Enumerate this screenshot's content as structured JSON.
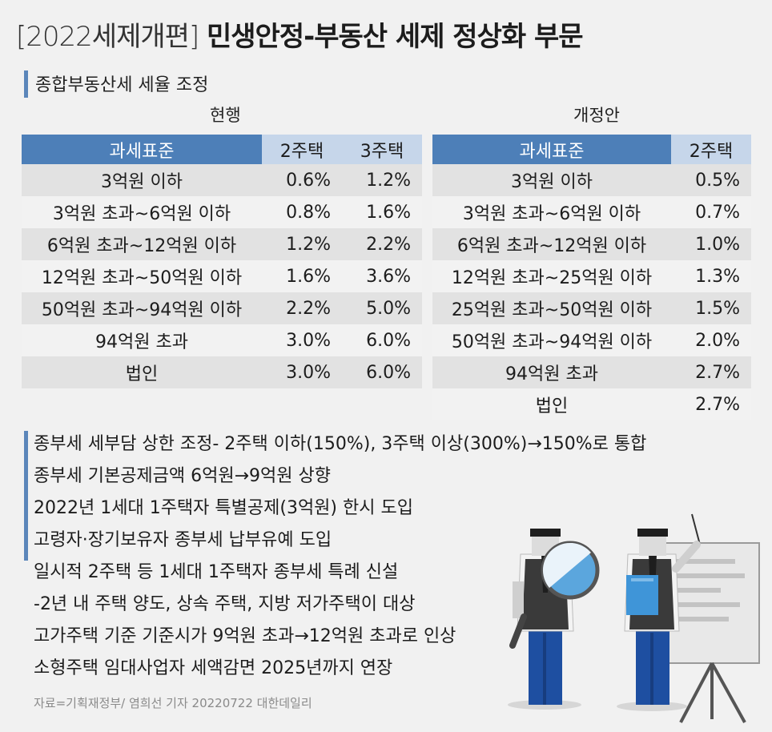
{
  "header": {
    "tag": "[2022세제개편]",
    "title": "민생안정-부동산 세제 정상화 부문"
  },
  "section": {
    "title": "종합부동산세 세율 조정"
  },
  "current_table": {
    "caption": "현행",
    "headers": [
      "과세표준",
      "2주택",
      "3주택"
    ],
    "rows": [
      {
        "bracket": "3억원 이하",
        "two": "0.6%",
        "three": "1.2%"
      },
      {
        "bracket": "3억원 초과~6억원 이하",
        "two": "0.8%",
        "three": "1.6%"
      },
      {
        "bracket": "6억원 초과~12억원 이하",
        "two": "1.2%",
        "three": "2.2%"
      },
      {
        "bracket": "12억원 초과~50억원 이하",
        "two": "1.6%",
        "three": "3.6%"
      },
      {
        "bracket": "50억원 초과~94억원 이하",
        "two": "2.2%",
        "three": "5.0%"
      },
      {
        "bracket": "94억원 초과",
        "two": "3.0%",
        "three": "6.0%"
      },
      {
        "bracket": "법인",
        "two": "3.0%",
        "three": "6.0%"
      }
    ]
  },
  "proposal_table": {
    "caption": "개정안",
    "headers": [
      "과세표준",
      "2주택"
    ],
    "rows": [
      {
        "bracket": "3억원 이하",
        "two": "0.5%"
      },
      {
        "bracket": "3억원 초과~6억원 이하",
        "two": "0.7%"
      },
      {
        "bracket": "6억원 초과~12억원 이하",
        "two": "1.0%"
      },
      {
        "bracket": "12억원 초과~25억원 이하",
        "two": "1.3%"
      },
      {
        "bracket": "25억원 초과~50억원 이하",
        "two": "1.5%"
      },
      {
        "bracket": "50억원 초과~94억원 이하",
        "two": "2.0%"
      },
      {
        "bracket": "94억원 초과",
        "two": "2.7%"
      },
      {
        "bracket": "법인",
        "two": "2.7%"
      }
    ]
  },
  "notes": [
    "종부세 세부담 상한 조정- 2주택 이하(150%), 3주택 이상(300%)→150%로 통합",
    "종부세 기본공제금액 6억원→9억원 상향",
    "2022년 1세대 1주택자 특별공제(3억원) 한시 도입",
    "고령자·장기보유자 종부세 납부유예 도입",
    "일시적 2주택 등 1세대 1주택자 종부세 특례 신설",
    "-2년 내 주택 양도, 상속 주택, 지방 저가주택이 대상",
    "고가주택 기준 기준시가 9억원 초과→12억원 초과로 인상",
    "소형주택 임대사업자 세액감면 2025년까지 연장"
  ],
  "source": "자료=기획재정부/ 염희선 기자 20220722 대한데일리",
  "colors": {
    "accent": "#4d7fb8",
    "accent_light": "#c6d6ea",
    "background": "#f1f1f1"
  },
  "illustration": {
    "icons": [
      "magnifier-icon",
      "presentation-board-icon"
    ]
  }
}
